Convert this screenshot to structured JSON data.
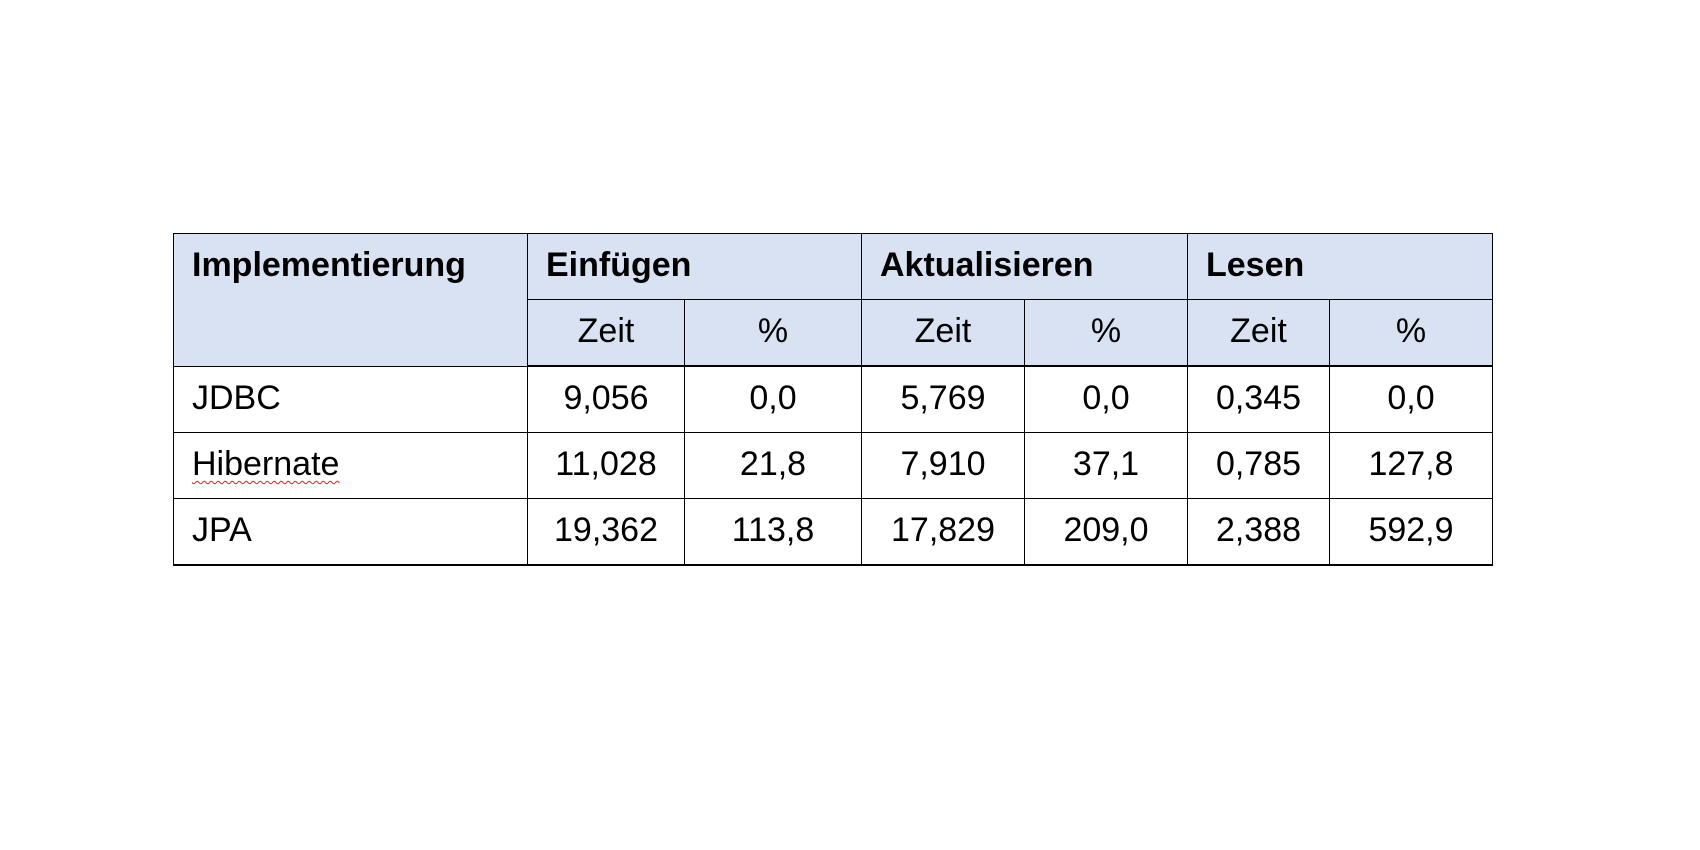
{
  "table": {
    "header": {
      "implementation_label": "Implementierung",
      "groups": [
        {
          "label": "Einfügen",
          "time_label": "Zeit",
          "percent_label": "%"
        },
        {
          "label": "Aktualisieren",
          "time_label": "Zeit",
          "percent_label": "%"
        },
        {
          "label": "Lesen",
          "time_label": "Zeit",
          "percent_label": "%"
        }
      ]
    },
    "rows": [
      {
        "name": "JDBC",
        "values": [
          "9,056",
          "0,0",
          "5,769",
          "0,0",
          "0,345",
          "0,0"
        ]
      },
      {
        "name": "Hibernate",
        "values": [
          "11,028",
          "21,8",
          "7,910",
          "37,1",
          "0,785",
          "127,8"
        ]
      },
      {
        "name": "JPA",
        "values": [
          "19,362",
          "113,8",
          "17,829",
          "209,0",
          "2,388",
          "592,9"
        ]
      }
    ],
    "colors": {
      "header_background": "#d9e2f3",
      "border": "#000000",
      "spellcheck_underline": "#e02020"
    }
  }
}
